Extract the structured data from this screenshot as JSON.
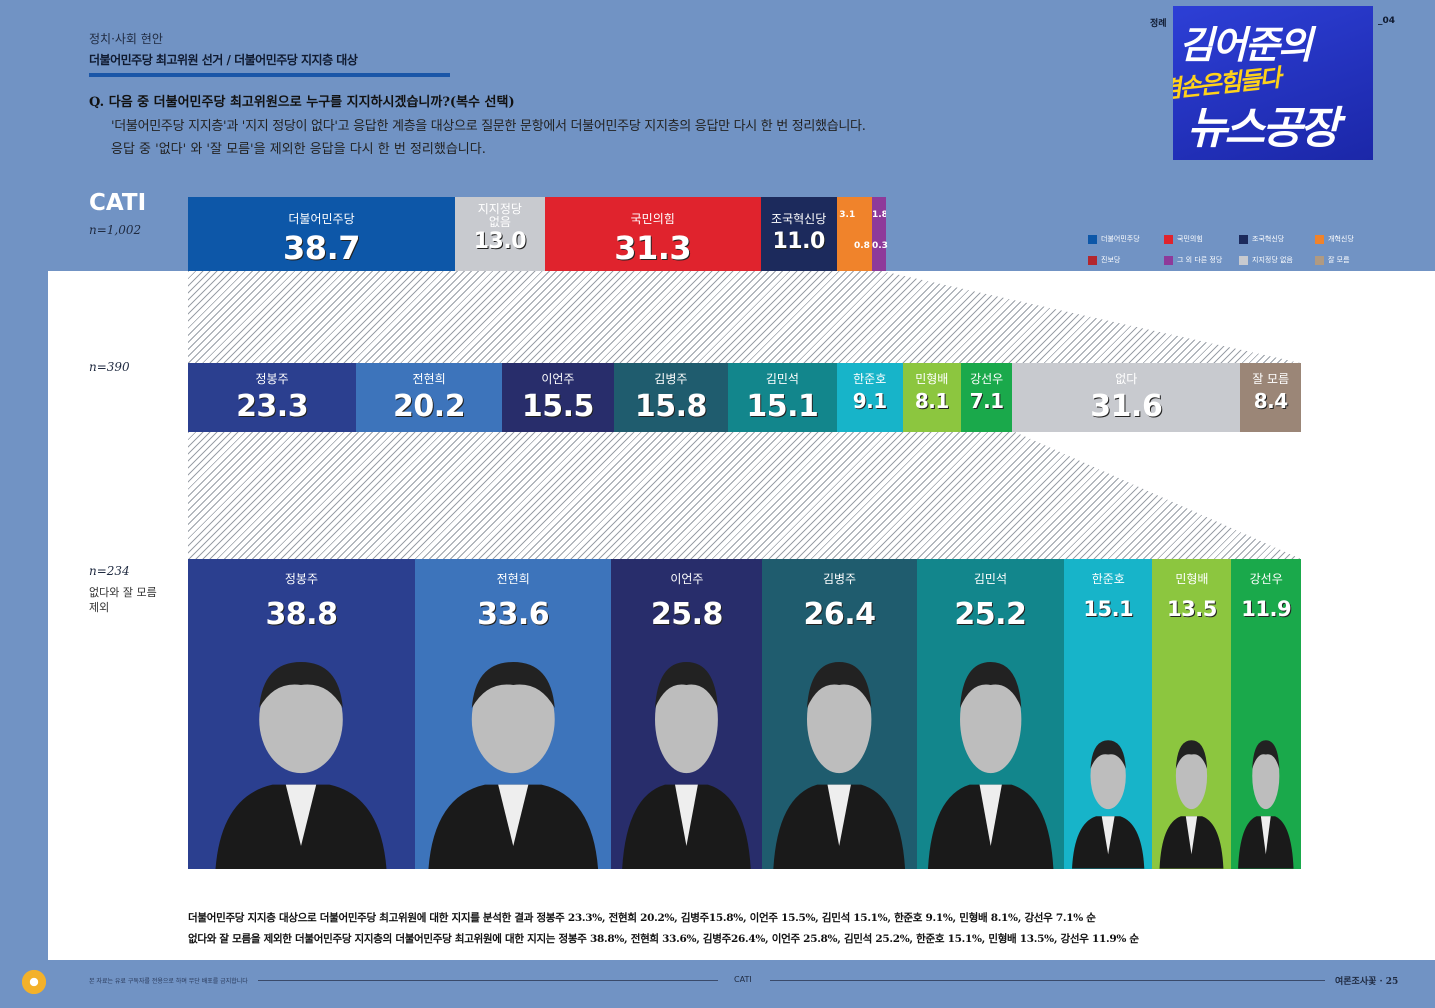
{
  "header": {
    "category": "정치·사회 현안",
    "subtitle": "더불어민주당 최고위원 선거 / 더불어민주당 지지층 대상",
    "page_tag": "_04",
    "logo_text_1": "김어준의",
    "logo_text_2": "겸손은힘들다",
    "logo_text_3": "뉴스공장",
    "logo_partial": "정례"
  },
  "question": {
    "q": "Q. 다음 중 더불어민주당 최고위원으로 누구를 지지하시겠습니까?(복수 선택)",
    "line2": "'더불어민주당 지지층'과 '지지 정당이 없다'고 응답한 계층을 대상으로 질문한 문항에서 더불어민주당 지지층의 응답만 다시 한 번 정리했습니다.",
    "line3": "응답 중 '없다' 와 '잘 모름'을 제외한 응답을 다시 한 번 정리했습니다."
  },
  "chart_data": [
    {
      "type": "bar",
      "title": "CATI",
      "n": "n=1,002",
      "categories": [
        "더불어민주당",
        "지지정당 없음",
        "국민의힘",
        "조국혁신당",
        "개혁신당",
        "진보당",
        "그외다른정당",
        "잘 모름"
      ],
      "values": [
        38.7,
        13.0,
        31.3,
        11.0,
        3.1,
        0.8,
        1.8,
        0.3
      ],
      "colors": [
        "#0d57a8",
        "#c8cacf",
        "#e0232d",
        "#1c2a5c",
        "#f0832b",
        "#b3272e",
        "#8e3a9a",
        "#b09a82"
      ]
    },
    {
      "type": "bar",
      "n": "n=390",
      "categories": [
        "정봉주",
        "전현희",
        "이언주",
        "김병주",
        "김민석",
        "한준호",
        "민형배",
        "강선우",
        "없다",
        "잘 모름"
      ],
      "values": [
        23.3,
        20.2,
        15.5,
        15.8,
        15.1,
        9.1,
        8.1,
        7.1,
        31.6,
        8.4
      ],
      "colors": [
        "#2b3f8f",
        "#3d74bb",
        "#282d6b",
        "#1f5c6e",
        "#12868c",
        "#17b4c9",
        "#8cc63f",
        "#1aa94b",
        "#c8cacf",
        "#9b8677"
      ]
    },
    {
      "type": "bar",
      "n": "n=234",
      "note": "없다와 잘 모름 제외",
      "categories": [
        "정봉주",
        "전현희",
        "이언주",
        "김병주",
        "김민석",
        "한준호",
        "민형배",
        "강선우"
      ],
      "values": [
        38.8,
        33.6,
        25.8,
        26.4,
        25.2,
        15.1,
        13.5,
        11.9
      ],
      "colors": [
        "#2b3f8f",
        "#3d74bb",
        "#282d6b",
        "#1f5c6e",
        "#12868c",
        "#17b4c9",
        "#8cc63f",
        "#1aa94b"
      ]
    }
  ],
  "top_labels": {
    "row1_names": [
      "더불어민주당",
      "지지정당 없음",
      "국민의힘",
      "조국혁신당",
      "3.1",
      "1.8",
      "0.8",
      "0.3"
    ],
    "row1_values": [
      "38.7",
      "13.0",
      "31.3",
      "11.0"
    ]
  },
  "legend": [
    {
      "label": "더불어민주당",
      "color": "#0d57a8"
    },
    {
      "label": "국민의힘",
      "color": "#e0232d"
    },
    {
      "label": "조국혁신당",
      "color": "#1c2a5c"
    },
    {
      "label": "개혁신당",
      "color": "#f0832b"
    },
    {
      "label": "진보당",
      "color": "#b3272e"
    },
    {
      "label": "그 외 다른 정당",
      "color": "#8e3a9a"
    },
    {
      "label": "지지정당 없음",
      "color": "#c8cacf"
    },
    {
      "label": "잘 모름",
      "color": "#b09a82"
    }
  ],
  "summary": {
    "line1": "더불어민주당 지지층 대상으로 더불어민주당 최고위원에 대한 지지를 분석한 결과 정봉주 23.3%, 전현희 20.2%, 김병주15.8%, 이언주 15.5%, 김민석 15.1%, 한준호 9.1%, 민형배 8.1%, 강선우 7.1% 순",
    "line2": "없다와 잘 모름을 제외한 더불어민주당 지지층의 더불어민주당 최고위원에 대한 지지는 정봉주 38.8%, 전현희 33.6%, 김병주26.4%, 이언주 25.8%, 김민석 25.2%, 한준호 15.1%, 민형배 13.5%, 강선우 11.9% 순"
  },
  "footer": {
    "disclaimer": "본 자료는 유료 구독자를 전용으로 하며 무단 배포를 금지합니다",
    "center": "CATI",
    "right": "여론조사꽃 · 25"
  }
}
